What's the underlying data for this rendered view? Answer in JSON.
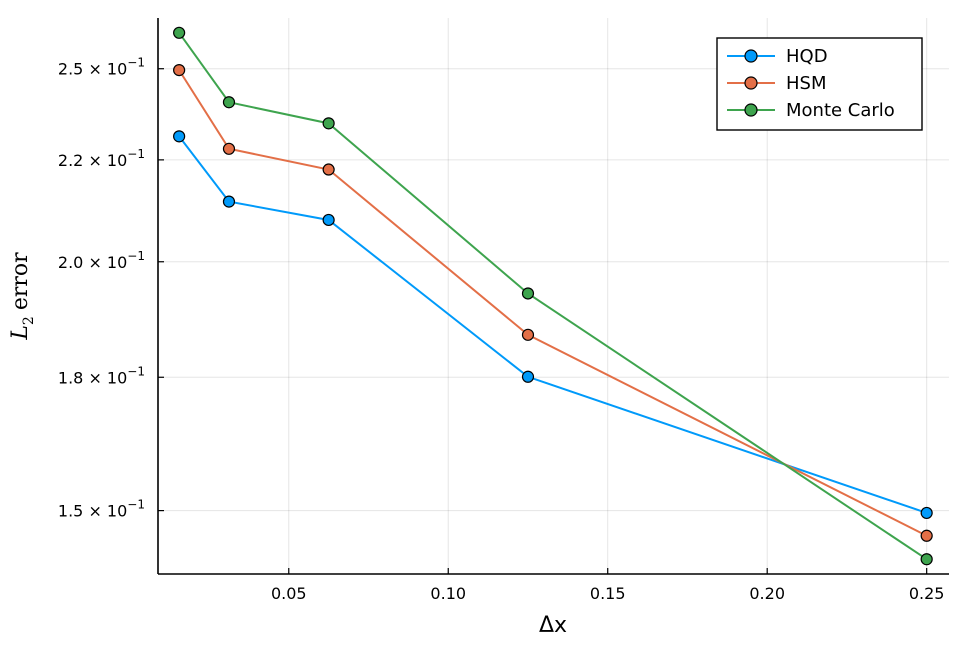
{
  "chart_data": {
    "type": "line",
    "title": "",
    "xlabel": "Δx",
    "ylabel": {
      "symbol": "L",
      "subscript": "2",
      "word": "error"
    },
    "x": [
      0.015625,
      0.03125,
      0.0625,
      0.125,
      0.25
    ],
    "xlim": [
      0.009,
      0.257
    ],
    "ylim": [
      0.1394,
      0.2651
    ],
    "yscale": "log",
    "grid": true,
    "legend_position": "top-right",
    "xticks": [
      {
        "value": 0.05,
        "label": "0.05"
      },
      {
        "value": 0.1,
        "label": "0.10"
      },
      {
        "value": 0.15,
        "label": "0.15"
      },
      {
        "value": 0.2,
        "label": "0.20"
      },
      {
        "value": 0.25,
        "label": "0.25"
      }
    ],
    "yticks": [
      {
        "value": 0.15,
        "mantissa": "1.5 × 10",
        "exp": "−1"
      },
      {
        "value": 0.175,
        "mantissa": "1.8 × 10",
        "exp": "−1"
      },
      {
        "value": 0.2,
        "mantissa": "2.0 × 10",
        "exp": "−1"
      },
      {
        "value": 0.225,
        "mantissa": "2.2 × 10",
        "exp": "−1"
      },
      {
        "value": 0.25,
        "mantissa": "2.5 × 10",
        "exp": "−1"
      }
    ],
    "series": [
      {
        "name": "HQD",
        "color": "#009AFA",
        "values": [
          0.2312,
          0.2144,
          0.2099,
          0.1751,
          0.1496
        ]
      },
      {
        "name": "HSM",
        "color": "#E36F47",
        "values": [
          0.2496,
          0.2279,
          0.2225,
          0.1838,
          0.1457
        ]
      },
      {
        "name": "Monte Carlo",
        "color": "#3EA44E",
        "values": [
          0.2606,
          0.2405,
          0.2347,
          0.1928,
          0.1418
        ]
      }
    ]
  }
}
